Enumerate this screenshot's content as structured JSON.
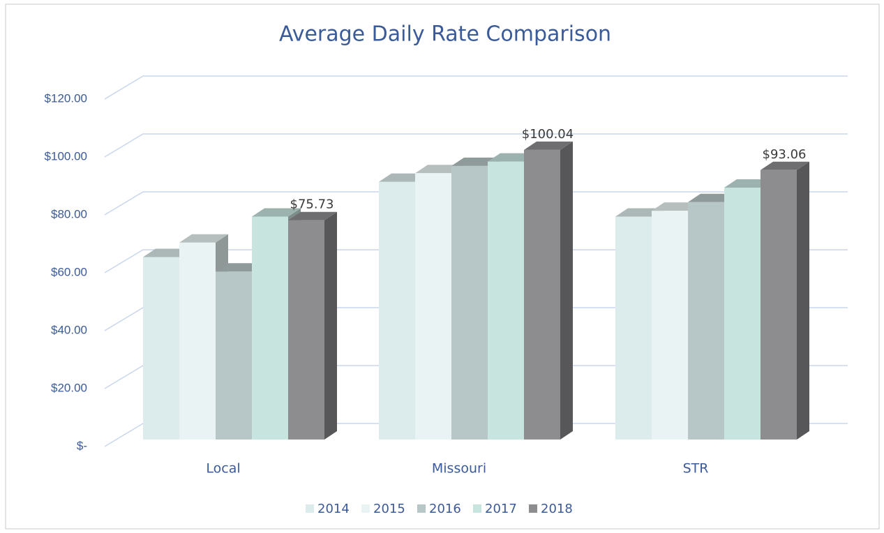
{
  "chart_data": {
    "type": "bar3d",
    "title": "Average Daily Rate Comparison",
    "categories": [
      "Local",
      "Missouri",
      "STR"
    ],
    "series": [
      {
        "name": "2014",
        "color": "#dcebec",
        "values": [
          63,
          89,
          77
        ]
      },
      {
        "name": "2015",
        "color": "#e9f3f3",
        "values": [
          68,
          92,
          79
        ]
      },
      {
        "name": "2016",
        "color": "#b7c6c6",
        "values": [
          58,
          94.5,
          82
        ]
      },
      {
        "name": "2017",
        "color": "#c8e4df",
        "values": [
          77,
          96,
          87
        ]
      },
      {
        "name": "2018",
        "color": "#8d8d8f",
        "values": [
          75.73,
          100.04,
          93.06
        ],
        "value_labels": [
          "$75.73",
          "$100.04",
          "$93.06"
        ]
      }
    ],
    "ylim": [
      0,
      120
    ],
    "yticks": [
      {
        "value": 0,
        "label": "$-"
      },
      {
        "value": 20,
        "label": "$20.00"
      },
      {
        "value": 40,
        "label": "$40.00"
      },
      {
        "value": 60,
        "label": "$60.00"
      },
      {
        "value": 80,
        "label": "$80.00"
      },
      {
        "value": 100,
        "label": "$100.00"
      },
      {
        "value": 120,
        "label": "$120.00"
      }
    ],
    "grid": true,
    "legend": "bottom"
  }
}
